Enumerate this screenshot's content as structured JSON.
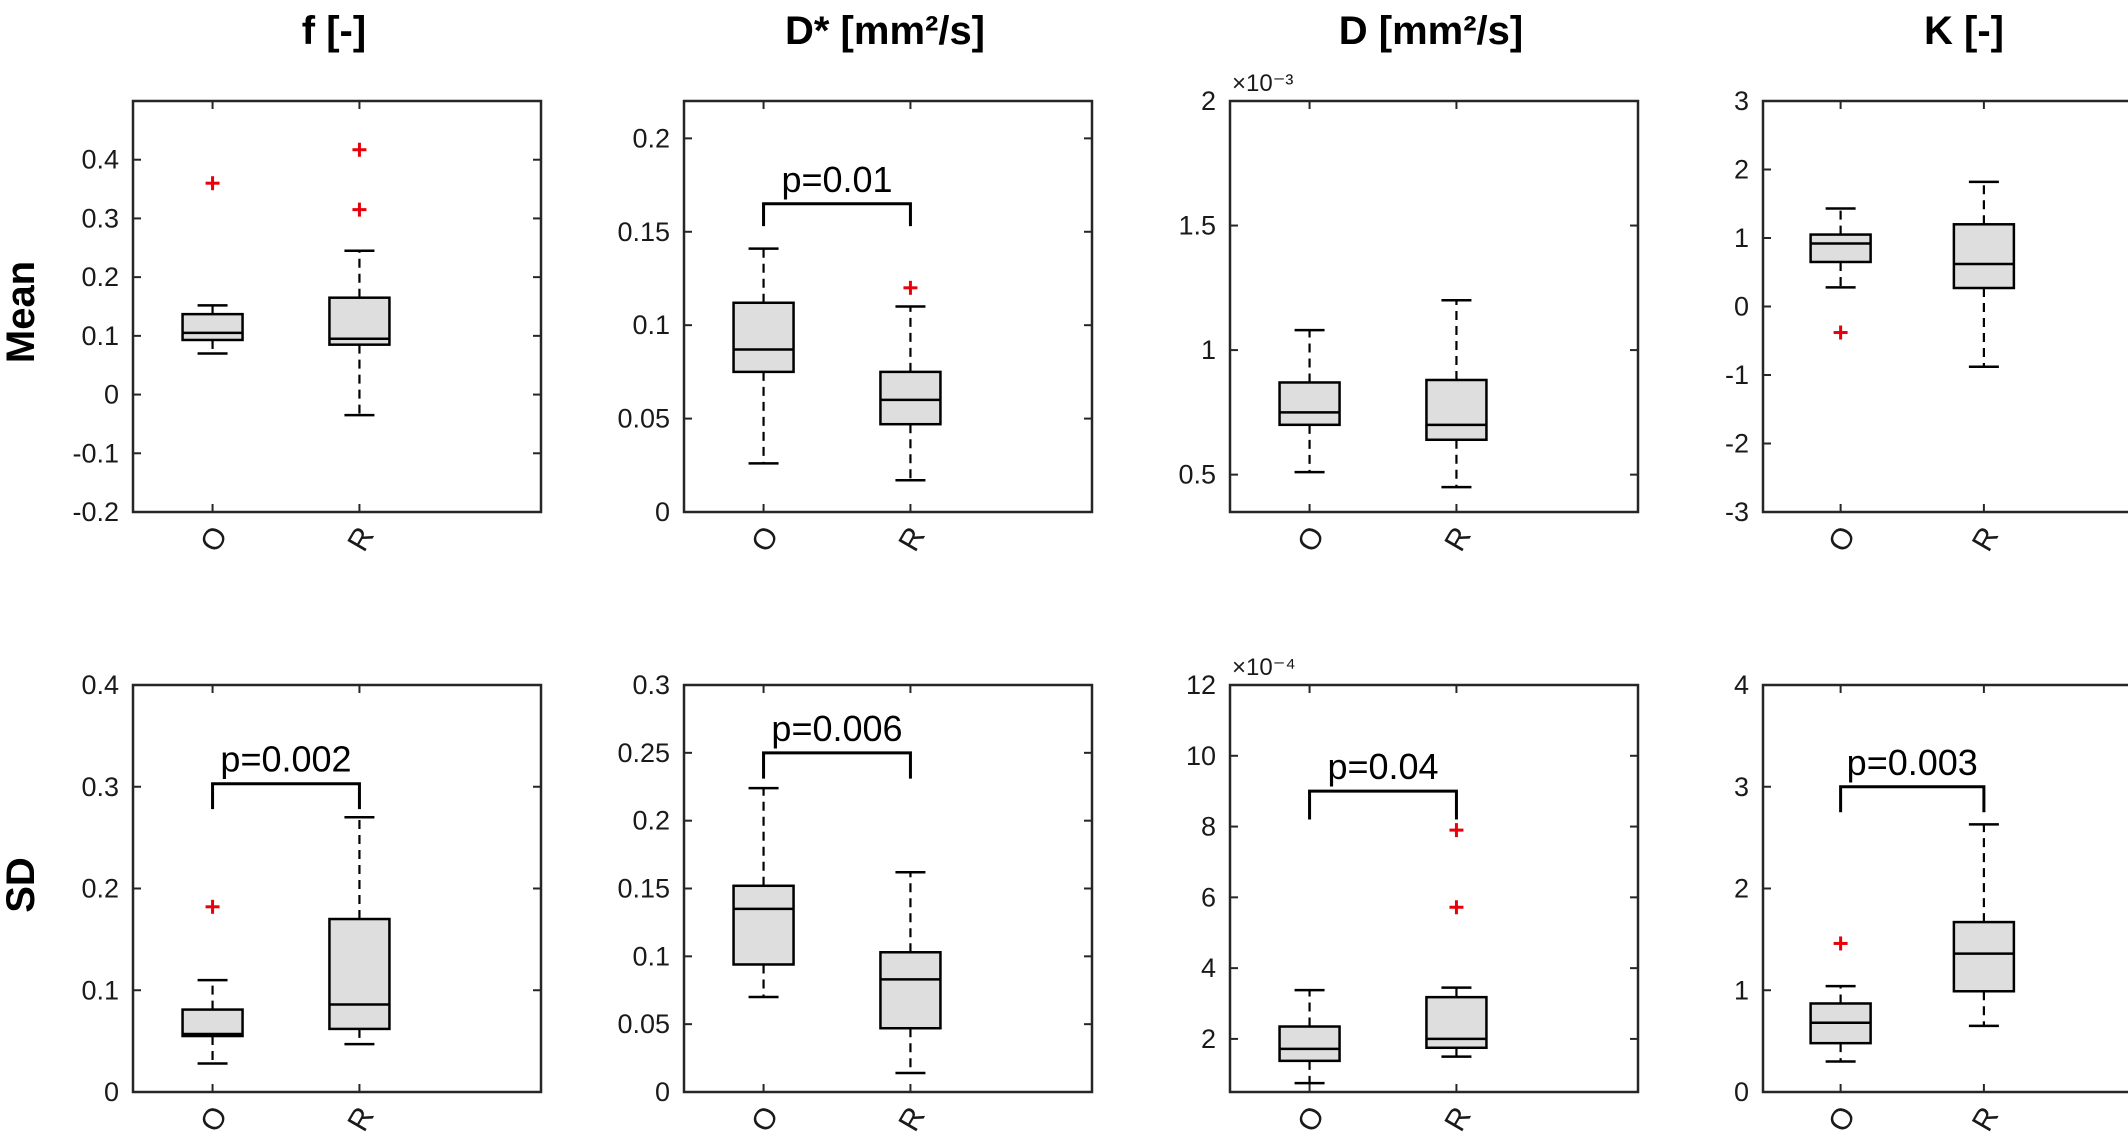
{
  "column_titles": [
    "f [-]",
    "D* [mm²/s]",
    "D [mm²/s]",
    "K [-]"
  ],
  "row_labels": [
    "Mean",
    "SD"
  ],
  "colors": {
    "box_fill": "#dedede",
    "outlier": "#e8000b",
    "axis": "#262626",
    "text": "#000000"
  },
  "chart_data": [
    {
      "type": "box",
      "row": "Mean",
      "column": "f [-]",
      "categories": [
        "O",
        "R"
      ],
      "ylim": [
        -0.2,
        0.5
      ],
      "yticks": [
        "-0.2",
        "-0.1",
        "0",
        "0.1",
        "0.2",
        "0.3",
        "0.4"
      ],
      "boxes": [
        {
          "category": "O",
          "whisker_low": 0.07,
          "q1": 0.093,
          "median": 0.105,
          "q3": 0.137,
          "whisker_high": 0.152,
          "outliers": [
            0.36
          ]
        },
        {
          "category": "R",
          "whisker_low": -0.035,
          "q1": 0.085,
          "median": 0.095,
          "q3": 0.165,
          "whisker_high": 0.245,
          "outliers": [
            0.315,
            0.417
          ]
        }
      ],
      "significance": null
    },
    {
      "type": "box",
      "row": "Mean",
      "column": "D* [mm²/s]",
      "categories": [
        "O",
        "R"
      ],
      "ylim": [
        0,
        0.22
      ],
      "yticks": [
        "0",
        "0.05",
        "0.1",
        "0.15",
        "0.2"
      ],
      "boxes": [
        {
          "category": "O",
          "whisker_low": 0.026,
          "q1": 0.075,
          "median": 0.087,
          "q3": 0.112,
          "whisker_high": 0.141,
          "outliers": []
        },
        {
          "category": "R",
          "whisker_low": 0.017,
          "q1": 0.047,
          "median": 0.06,
          "q3": 0.075,
          "whisker_high": 0.11,
          "outliers": [
            0.12
          ]
        }
      ],
      "significance": {
        "text": "p=0.01",
        "y": 0.165,
        "drop": 0.012
      }
    },
    {
      "type": "box",
      "row": "Mean",
      "column": "D [mm²/s]",
      "categories": [
        "O",
        "R"
      ],
      "ylim": [
        0.35,
        2
      ],
      "yticks": [
        "0.5",
        "1",
        "1.5",
        "2"
      ],
      "exponent": "×10⁻³",
      "boxes": [
        {
          "category": "O",
          "whisker_low": 0.51,
          "q1": 0.7,
          "median": 0.75,
          "q3": 0.87,
          "whisker_high": 1.08,
          "outliers": []
        },
        {
          "category": "R",
          "whisker_low": 0.45,
          "q1": 0.64,
          "median": 0.7,
          "q3": 0.88,
          "whisker_high": 1.2,
          "outliers": []
        }
      ],
      "significance": null
    },
    {
      "type": "box",
      "row": "Mean",
      "column": "K [-]",
      "categories": [
        "O",
        "R"
      ],
      "ylim": [
        -3,
        3
      ],
      "yticks": [
        "-3",
        "-2",
        "-1",
        "0",
        "1",
        "2",
        "3"
      ],
      "boxes": [
        {
          "category": "O",
          "whisker_low": 0.28,
          "q1": 0.65,
          "median": 0.92,
          "q3": 1.05,
          "whisker_high": 1.43,
          "outliers": [
            -0.38
          ]
        },
        {
          "category": "R",
          "whisker_low": -0.88,
          "q1": 0.27,
          "median": 0.62,
          "q3": 1.2,
          "whisker_high": 1.82,
          "outliers": []
        }
      ],
      "significance": null
    },
    {
      "type": "box",
      "row": "SD",
      "column": "f [-]",
      "categories": [
        "O",
        "R"
      ],
      "ylim": [
        0,
        0.4
      ],
      "yticks": [
        "0",
        "0.1",
        "0.2",
        "0.3",
        "0.4"
      ],
      "boxes": [
        {
          "category": "O",
          "whisker_low": 0.028,
          "q1": 0.055,
          "median": 0.057,
          "q3": 0.081,
          "whisker_high": 0.11,
          "outliers": [
            0.182
          ]
        },
        {
          "category": "R",
          "whisker_low": 0.047,
          "q1": 0.062,
          "median": 0.086,
          "q3": 0.17,
          "whisker_high": 0.27,
          "outliers": []
        }
      ],
      "significance": {
        "text": "p=0.002",
        "y": 0.303,
        "drop": 0.025
      }
    },
    {
      "type": "box",
      "row": "SD",
      "column": "D* [mm²/s]",
      "categories": [
        "O",
        "R"
      ],
      "ylim": [
        0,
        0.3
      ],
      "yticks": [
        "0",
        "0.05",
        "0.1",
        "0.15",
        "0.2",
        "0.25",
        "0.3"
      ],
      "boxes": [
        {
          "category": "O",
          "whisker_low": 0.07,
          "q1": 0.094,
          "median": 0.135,
          "q3": 0.152,
          "whisker_high": 0.224,
          "outliers": []
        },
        {
          "category": "R",
          "whisker_low": 0.014,
          "q1": 0.047,
          "median": 0.083,
          "q3": 0.103,
          "whisker_high": 0.162,
          "outliers": []
        }
      ],
      "significance": {
        "text": "p=0.006",
        "y": 0.25,
        "drop": 0.019
      }
    },
    {
      "type": "box",
      "row": "SD",
      "column": "D [mm²/s]",
      "categories": [
        "O",
        "R"
      ],
      "ylim": [
        0.5,
        12
      ],
      "yticks": [
        "2",
        "4",
        "6",
        "8",
        "10",
        "12"
      ],
      "exponent": "×10⁻⁴",
      "boxes": [
        {
          "category": "O",
          "whisker_low": 0.75,
          "q1": 1.38,
          "median": 1.72,
          "q3": 2.35,
          "whisker_high": 3.38,
          "outliers": []
        },
        {
          "category": "R",
          "whisker_low": 1.5,
          "q1": 1.75,
          "median": 2.0,
          "q3": 3.18,
          "whisker_high": 3.45,
          "outliers": [
            5.72,
            7.9
          ]
        }
      ],
      "significance": {
        "text": "p=0.04",
        "y": 9.0,
        "drop": 0.8
      }
    },
    {
      "type": "box",
      "row": "SD",
      "column": "K [-]",
      "categories": [
        "O",
        "R"
      ],
      "ylim": [
        0,
        4
      ],
      "yticks": [
        "0",
        "1",
        "2",
        "3",
        "4"
      ],
      "boxes": [
        {
          "category": "O",
          "whisker_low": 0.3,
          "q1": 0.48,
          "median": 0.68,
          "q3": 0.87,
          "whisker_high": 1.04,
          "outliers": [
            1.46
          ]
        },
        {
          "category": "R",
          "whisker_low": 0.65,
          "q1": 0.99,
          "median": 1.36,
          "q3": 1.67,
          "whisker_high": 2.63,
          "outliers": []
        }
      ],
      "significance": {
        "text": "p=0.003",
        "y": 3.0,
        "drop": 0.25
      }
    }
  ]
}
